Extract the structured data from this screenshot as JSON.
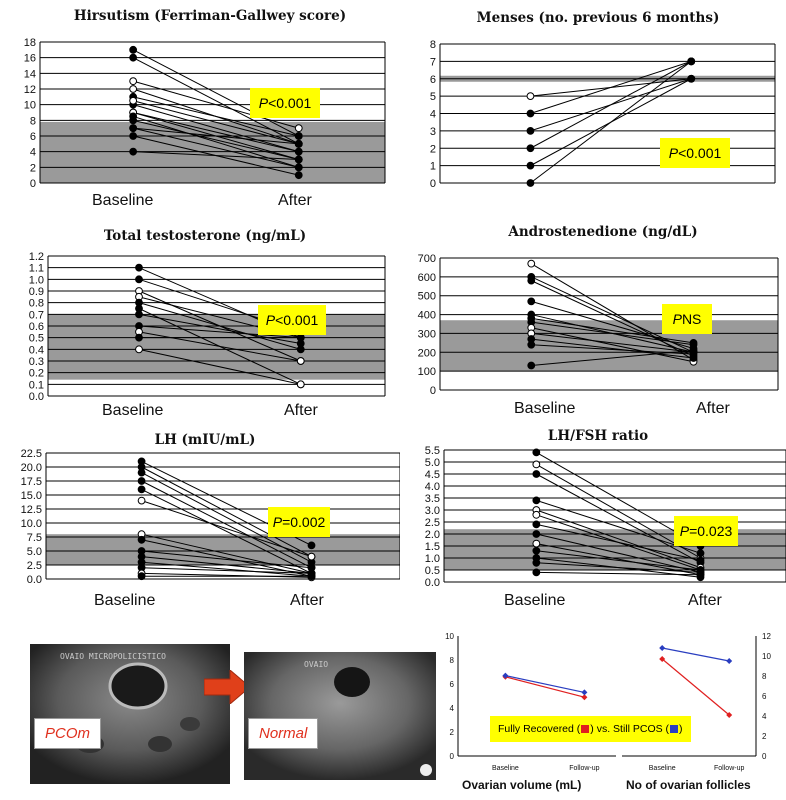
{
  "p_prefix": "P",
  "chart_data": [
    {
      "type": "line",
      "title": "Hirsutism (Ferriman-Gallwey score)",
      "categories": [
        "Baseline",
        "After"
      ],
      "ylim": [
        0,
        18
      ],
      "yticks": [
        "0",
        "2",
        "4",
        "6",
        "8",
        "10",
        "12",
        "14",
        "16",
        "18"
      ],
      "normal_range": [
        0,
        7.8
      ],
      "p_value": "<0.001",
      "series": [
        {
          "values": [
            17,
            6
          ],
          "marker": "filled"
        },
        {
          "values": [
            16,
            5
          ],
          "marker": "filled"
        },
        {
          "values": [
            13,
            7
          ],
          "marker": "open"
        },
        {
          "values": [
            12,
            5
          ],
          "marker": "open"
        },
        {
          "values": [
            11,
            6
          ],
          "marker": "filled"
        },
        {
          "values": [
            10,
            4
          ],
          "marker": "filled"
        },
        {
          "values": [
            10.5,
            5
          ],
          "marker": "open"
        },
        {
          "values": [
            9,
            4
          ],
          "marker": "filled"
        },
        {
          "values": [
            9,
            3
          ],
          "marker": "open"
        },
        {
          "values": [
            8,
            3
          ],
          "marker": "filled"
        },
        {
          "values": [
            8.5,
            2
          ],
          "marker": "filled"
        },
        {
          "values": [
            7,
            5
          ],
          "marker": "filled"
        },
        {
          "values": [
            7,
            2
          ],
          "marker": "filled"
        },
        {
          "values": [
            6,
            1
          ],
          "marker": "filled"
        },
        {
          "values": [
            4,
            3
          ],
          "marker": "filled"
        }
      ]
    },
    {
      "type": "line",
      "title": "Menses (no. previous 6 months)",
      "categories": [
        "Baseline",
        "After"
      ],
      "ylim": [
        0,
        8
      ],
      "yticks": [
        "0",
        "1",
        "2",
        "3",
        "4",
        "5",
        "6",
        "7",
        "8"
      ],
      "normal_range": [
        6,
        6
      ],
      "p_value": "<0.001",
      "series": [
        {
          "values": [
            5,
            6
          ],
          "marker": "open"
        },
        {
          "values": [
            4,
            7
          ],
          "marker": "filled"
        },
        {
          "values": [
            3,
            6
          ],
          "marker": "filled"
        },
        {
          "values": [
            2,
            7
          ],
          "marker": "filled"
        },
        {
          "values": [
            1,
            6
          ],
          "marker": "filled"
        },
        {
          "values": [
            0,
            7
          ],
          "marker": "filled"
        }
      ]
    },
    {
      "type": "line",
      "title": "Total testosterone (ng/mL)",
      "categories": [
        "Baseline",
        "After"
      ],
      "ylim": [
        0,
        1.2
      ],
      "yticks": [
        "0.0",
        "0.1",
        "0.2",
        "0.3",
        "0.4",
        "0.5",
        "0.6",
        "0.7",
        "0.8",
        "0.9",
        "1.0",
        "1.1",
        "1.2"
      ],
      "normal_range": [
        0.14,
        0.7
      ],
      "p_value": "<0.001",
      "series": [
        {
          "values": [
            1.1,
            0.5
          ],
          "marker": "filled"
        },
        {
          "values": [
            1.0,
            0.55
          ],
          "marker": "filled"
        },
        {
          "values": [
            0.9,
            0.3
          ],
          "marker": "open"
        },
        {
          "values": [
            0.85,
            0.5
          ],
          "marker": "open"
        },
        {
          "values": [
            0.8,
            0.4
          ],
          "marker": "filled"
        },
        {
          "values": [
            0.75,
            0.1
          ],
          "marker": "filled"
        },
        {
          "values": [
            0.7,
            0.45
          ],
          "marker": "filled"
        },
        {
          "values": [
            0.6,
            0.5
          ],
          "marker": "filled"
        },
        {
          "values": [
            0.55,
            0.3
          ],
          "marker": "open"
        },
        {
          "values": [
            0.5,
            0.5
          ],
          "marker": "filled"
        },
        {
          "values": [
            0.4,
            0.1
          ],
          "marker": "open"
        }
      ]
    },
    {
      "type": "line",
      "title": "Androstenedione (ng/dL)",
      "categories": [
        "Baseline",
        "After"
      ],
      "ylim": [
        0,
        700
      ],
      "yticks": [
        "0",
        "100",
        "200",
        "300",
        "400",
        "500",
        "600",
        "700"
      ],
      "normal_range": [
        100,
        370
      ],
      "p_value": "NS",
      "series": [
        {
          "values": [
            670,
            160
          ],
          "marker": "open"
        },
        {
          "values": [
            600,
            200
          ],
          "marker": "filled"
        },
        {
          "values": [
            580,
            180
          ],
          "marker": "filled"
        },
        {
          "values": [
            470,
            220
          ],
          "marker": "filled"
        },
        {
          "values": [
            400,
            200
          ],
          "marker": "filled"
        },
        {
          "values": [
            380,
            250
          ],
          "marker": "filled"
        },
        {
          "values": [
            360,
            240
          ],
          "marker": "filled"
        },
        {
          "values": [
            330,
            150
          ],
          "marker": "open"
        },
        {
          "values": [
            300,
            200
          ],
          "marker": "open"
        },
        {
          "values": [
            270,
            170
          ],
          "marker": "filled"
        },
        {
          "values": [
            240,
            190
          ],
          "marker": "filled"
        },
        {
          "values": [
            130,
            210
          ],
          "marker": "filled"
        }
      ]
    },
    {
      "type": "line",
      "title": "LH (mIU/mL)",
      "categories": [
        "Baseline",
        "After"
      ],
      "ylim": [
        0,
        22.5
      ],
      "yticks": [
        "0.0",
        "2.5",
        "5.0",
        "7.5",
        "10.0",
        "12.5",
        "15.0",
        "17.5",
        "20.0",
        "22.5"
      ],
      "normal_range": [
        2.5,
        8
      ],
      "p_value": "=0.002",
      "series": [
        {
          "values": [
            21,
            6
          ],
          "marker": "filled"
        },
        {
          "values": [
            20,
            4
          ],
          "marker": "filled"
        },
        {
          "values": [
            19,
            3
          ],
          "marker": "filled"
        },
        {
          "values": [
            17.5,
            2
          ],
          "marker": "filled"
        },
        {
          "values": [
            16,
            1
          ],
          "marker": "filled"
        },
        {
          "values": [
            14,
            4
          ],
          "marker": "open"
        },
        {
          "values": [
            8,
            1
          ],
          "marker": "open"
        },
        {
          "values": [
            7,
            0.5
          ],
          "marker": "filled"
        },
        {
          "values": [
            5,
            2
          ],
          "marker": "filled"
        },
        {
          "values": [
            4,
            1
          ],
          "marker": "filled"
        },
        {
          "values": [
            3,
            0.5
          ],
          "marker": "filled"
        },
        {
          "values": [
            2,
            1
          ],
          "marker": "filled"
        },
        {
          "values": [
            1,
            0.3
          ],
          "marker": "open"
        },
        {
          "values": [
            0.5,
            0.5
          ],
          "marker": "filled"
        }
      ]
    },
    {
      "type": "line",
      "title": "LH/FSH ratio",
      "categories": [
        "Baseline",
        "After"
      ],
      "ylim": [
        0,
        5.5
      ],
      "yticks": [
        "0.0",
        "0.5",
        "1.0",
        "1.5",
        "2.0",
        "2.5",
        "3.0",
        "3.5",
        "4.0",
        "4.5",
        "5.0",
        "5.5"
      ],
      "normal_range": [
        0.5,
        2.2
      ],
      "p_value": "=0.023",
      "series": [
        {
          "values": [
            5.4,
            1.5
          ],
          "marker": "filled"
        },
        {
          "values": [
            4.9,
            1.0
          ],
          "marker": "open"
        },
        {
          "values": [
            4.5,
            0.8
          ],
          "marker": "filled"
        },
        {
          "values": [
            3.4,
            1.2
          ],
          "marker": "filled"
        },
        {
          "values": [
            3.0,
            0.6
          ],
          "marker": "open"
        },
        {
          "values": [
            2.8,
            0.5
          ],
          "marker": "open"
        },
        {
          "values": [
            2.4,
            0.9
          ],
          "marker": "filled"
        },
        {
          "values": [
            2.0,
            0.4
          ],
          "marker": "filled"
        },
        {
          "values": [
            1.6,
            0.3
          ],
          "marker": "open"
        },
        {
          "values": [
            1.3,
            0.5
          ],
          "marker": "filled"
        },
        {
          "values": [
            1.0,
            0.2
          ],
          "marker": "filled"
        },
        {
          "values": [
            0.8,
            0.4
          ],
          "marker": "filled"
        },
        {
          "values": [
            0.4,
            0.3
          ],
          "marker": "filled"
        }
      ]
    },
    {
      "type": "line",
      "title": "",
      "xlabel": "Ovarian volume (mL)",
      "categories": [
        "Baseline",
        "Follow-up"
      ],
      "ylim": [
        0,
        10
      ],
      "yticks": [
        "0",
        "2",
        "4",
        "6",
        "8",
        "10"
      ],
      "series": [
        {
          "name": "Fully Recovered",
          "color": "#e02020",
          "values": [
            6.6,
            4.9
          ]
        },
        {
          "name": "Still PCOS",
          "color": "#2a3ec0",
          "values": [
            6.7,
            5.3
          ]
        }
      ]
    },
    {
      "type": "line",
      "title": "",
      "xlabel": "No of ovarian follicles",
      "categories": [
        "Baseline",
        "Follow-up"
      ],
      "ylim": [
        0,
        12
      ],
      "yticks": [
        "0",
        "2",
        "4",
        "6",
        "8",
        "10",
        "12"
      ],
      "series": [
        {
          "name": "Fully Recovered",
          "color": "#e02020",
          "values": [
            9.7,
            4.1
          ]
        },
        {
          "name": "Still PCOS",
          "color": "#2a3ec0",
          "values": [
            10.8,
            9.5
          ]
        }
      ]
    }
  ],
  "legend": {
    "text_a": "Fully Recovered (",
    "text_b": ") vs. Still PCOS (",
    "text_c": ")",
    "color_a": "#e02020",
    "color_b": "#2a3ec0"
  },
  "ultrasound": {
    "left_label": "PCOm",
    "right_label": "Normal",
    "left_header": "OVAIO MICROPOLICISTICO",
    "right_header": "OVAIO",
    "arrow_color": "#e0401a"
  }
}
